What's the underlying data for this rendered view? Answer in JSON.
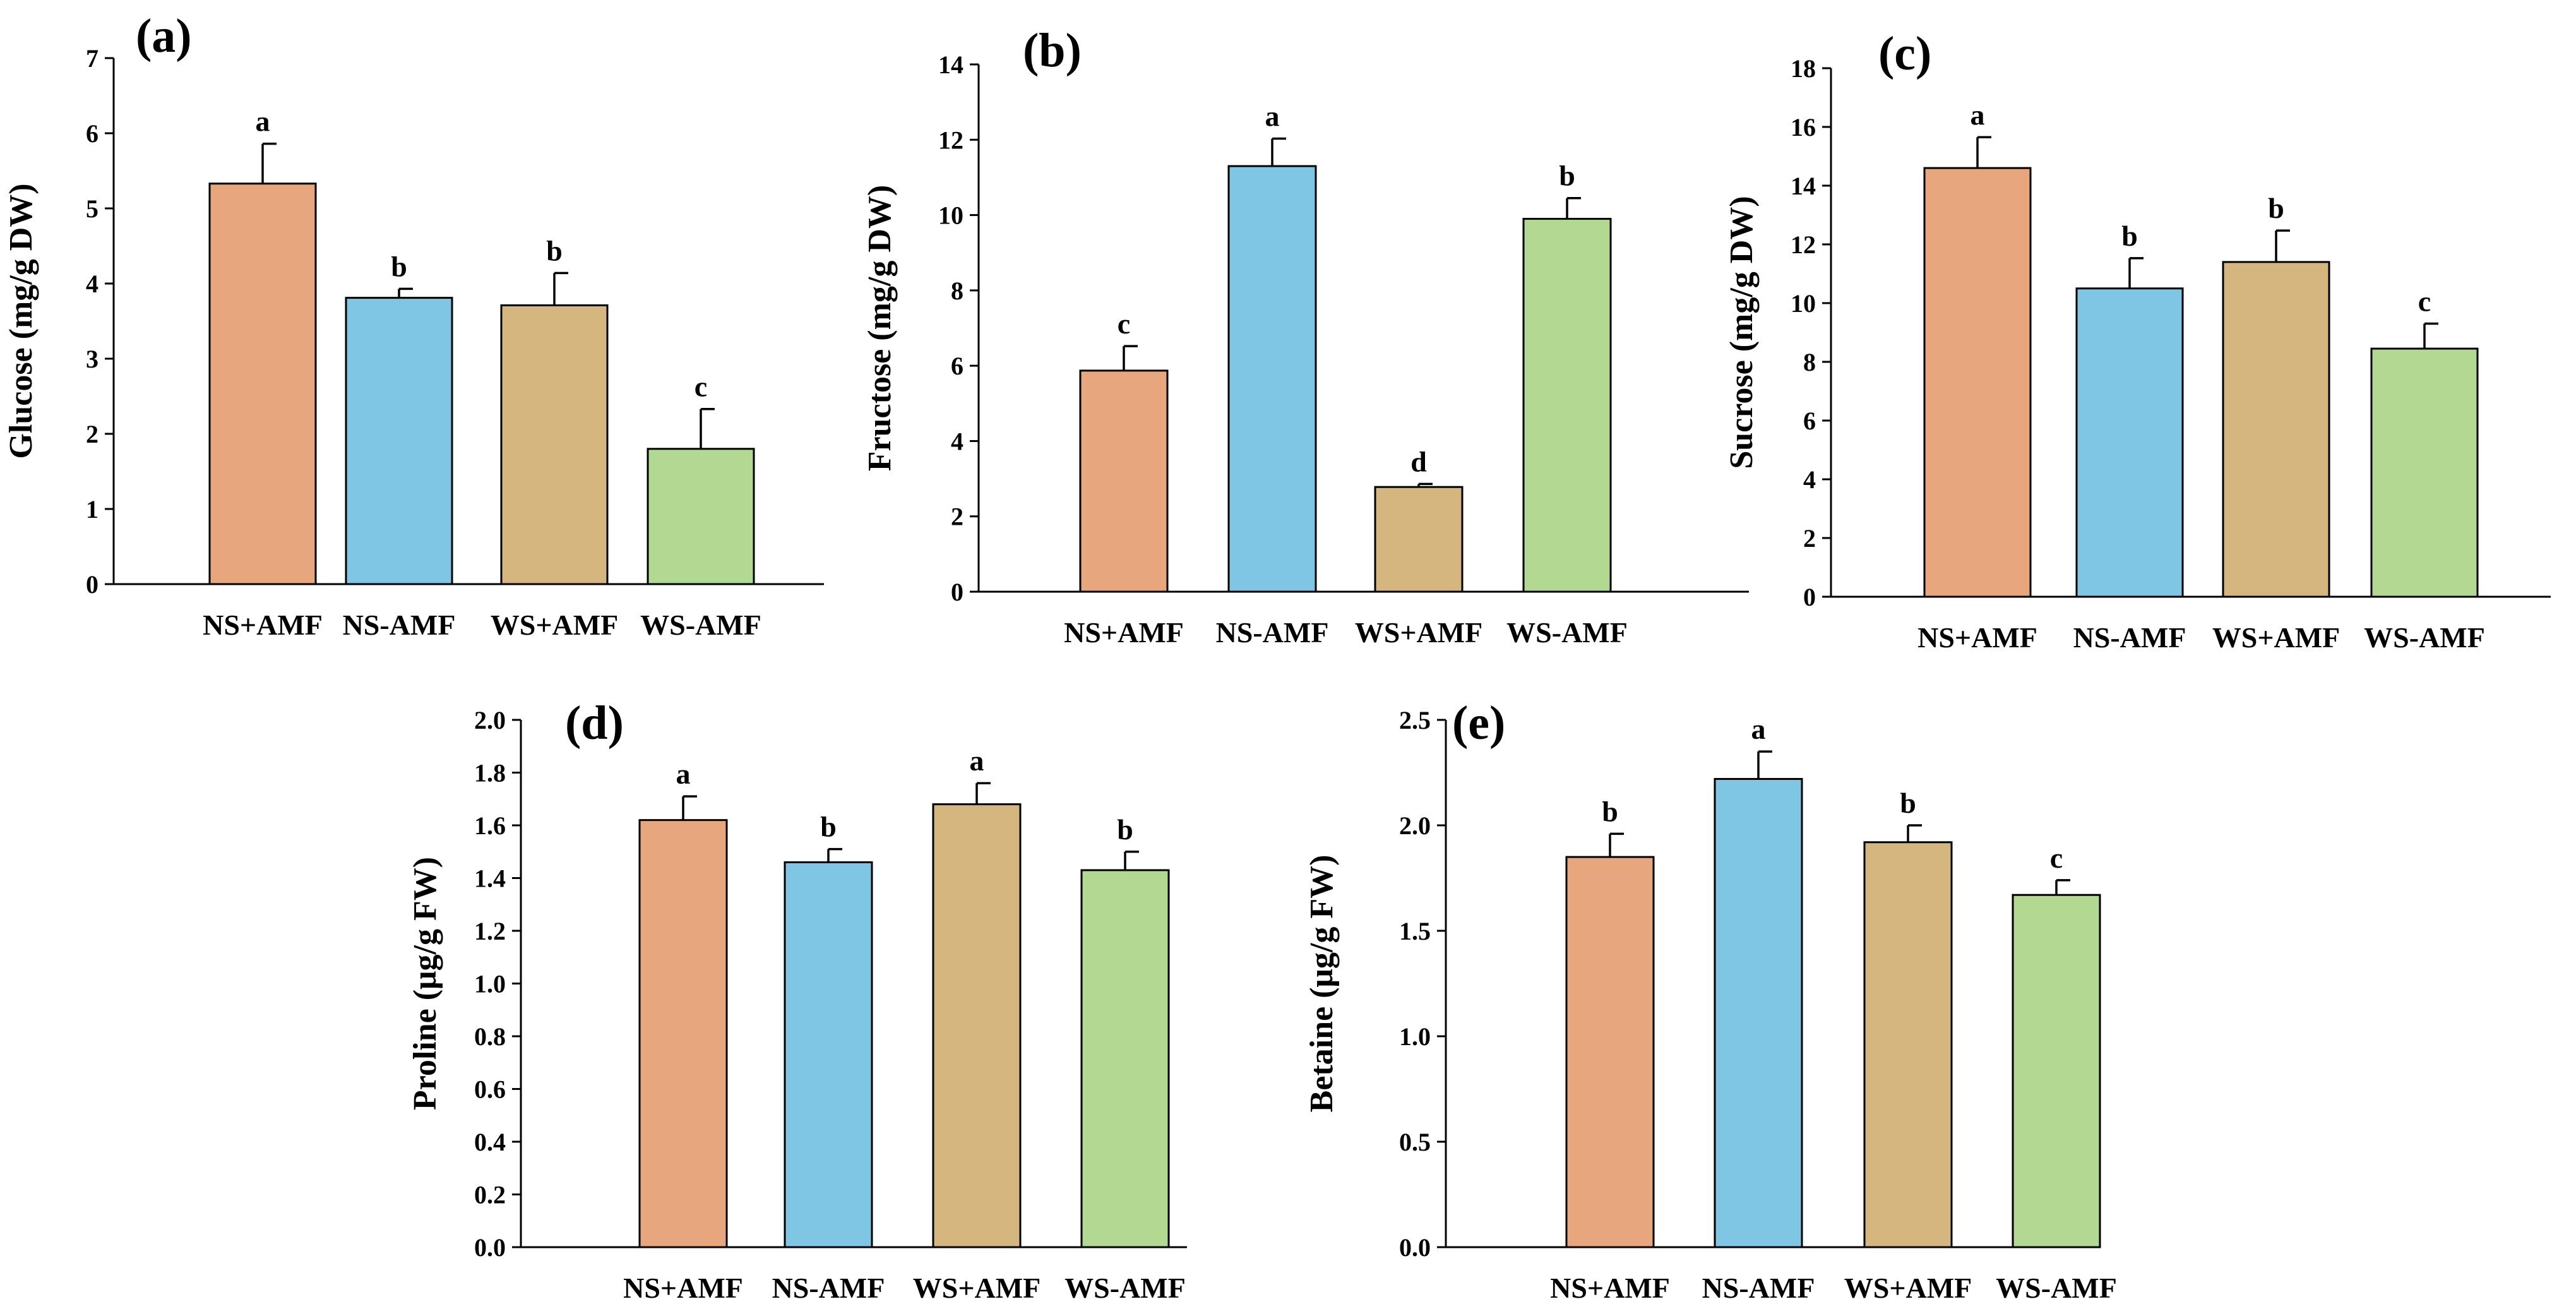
{
  "chart_data": [
    {
      "type": "bar",
      "panel": "(a)",
      "categories": [
        "NS+AMF",
        "NS-AMF",
        "WS+AMF",
        "WS-AMF"
      ],
      "values": [
        5.33,
        3.81,
        3.71,
        1.8
      ],
      "errors": [
        0.53,
        0.12,
        0.43,
        0.53
      ],
      "letters": [
        "a",
        "b",
        "b",
        "c"
      ],
      "ylabel": "Glucose (mg/g DW)",
      "ylim": [
        0,
        7
      ],
      "yticks": [
        "0",
        "1",
        "2",
        "3",
        "4",
        "5",
        "6",
        "7"
      ]
    },
    {
      "type": "bar",
      "panel": "(b)",
      "categories": [
        "NS+AMF",
        "NS-AMF",
        "WS+AMF",
        "WS-AMF"
      ],
      "values": [
        5.87,
        11.3,
        2.78,
        9.9
      ],
      "errors": [
        0.65,
        0.73,
        0.08,
        0.55
      ],
      "letters": [
        "c",
        "a",
        "d",
        "b"
      ],
      "ylabel": "Fructose (mg/g DW)",
      "ylim": [
        0,
        14
      ],
      "yticks": [
        "0",
        "2",
        "4",
        "6",
        "8",
        "10",
        "12",
        "14"
      ]
    },
    {
      "type": "bar",
      "panel": "(c)",
      "categories": [
        "NS+AMF",
        "NS-AMF",
        "WS+AMF",
        "WS-AMF"
      ],
      "values": [
        14.6,
        10.5,
        11.4,
        8.45
      ],
      "errors": [
        1.05,
        1.03,
        1.07,
        0.85
      ],
      "letters": [
        "a",
        "b",
        "b",
        "c"
      ],
      "ylabel": "Sucrose (mg/g DW)",
      "ylim": [
        0,
        18
      ],
      "yticks": [
        "0",
        "2",
        "4",
        "6",
        "8",
        "10",
        "12",
        "14",
        "16",
        "18"
      ]
    },
    {
      "type": "bar",
      "panel": "(d)",
      "categories": [
        "NS+AMF",
        "NS-AMF",
        "WS+AMF",
        "WS-AMF"
      ],
      "values": [
        1.62,
        1.46,
        1.68,
        1.43
      ],
      "errors": [
        0.09,
        0.05,
        0.08,
        0.07
      ],
      "letters": [
        "a",
        "b",
        "a",
        "b"
      ],
      "ylabel": "Proline (μg/g FW)",
      "ylim": [
        0,
        2.0
      ],
      "yticks": [
        "0.0",
        "0.2",
        "0.4",
        "0.6",
        "0.8",
        "1.0",
        "1.2",
        "1.4",
        "1.6",
        "1.8",
        "2.0"
      ]
    },
    {
      "type": "bar",
      "panel": "(e)",
      "categories": [
        "NS+AMF",
        "NS-AMF",
        "WS+AMF",
        "WS-AMF"
      ],
      "values": [
        1.85,
        2.22,
        1.92,
        1.67
      ],
      "errors": [
        0.11,
        0.13,
        0.08,
        0.07
      ],
      "letters": [
        "b",
        "a",
        "b",
        "c"
      ],
      "ylabel": "Betaine (μg/g FW)",
      "ylim": [
        0,
        2.5
      ],
      "yticks": [
        "0.0",
        "0.5",
        "1.0",
        "1.5",
        "2.0",
        "2.5"
      ]
    }
  ],
  "colors": {
    "NS+AMF": "#E8A67D",
    "NS-AMF": "#7EC6E3",
    "WS+AMF": "#D4B67E",
    "WS-AMF": "#B1D991",
    "axis": "#000000"
  }
}
